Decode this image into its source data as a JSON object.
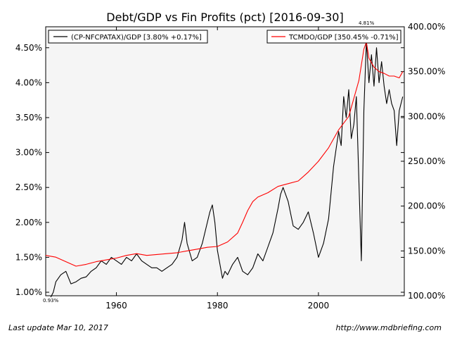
{
  "chart_data": {
    "type": "line",
    "title": "Debt/GDP vs Fin Profits (pct) [2016-09-30]",
    "x_range": [
      1946,
      2017
    ],
    "x_ticks": [
      1960,
      1980,
      2000
    ],
    "y_left": {
      "lim": [
        0.95,
        4.8
      ],
      "ticks": [
        1.0,
        1.5,
        2.0,
        2.5,
        3.0,
        3.5,
        4.0,
        4.5
      ],
      "tick_labels": [
        "1.00%",
        "1.50%",
        "2.00%",
        "2.50%",
        "3.00%",
        "3.50%",
        "4.00%",
        "4.50%"
      ]
    },
    "y_right": {
      "lim": [
        100,
        400
      ],
      "ticks": [
        100,
        150,
        200,
        250,
        300,
        350,
        400
      ],
      "tick_labels": [
        "100.00%",
        "150.00%",
        "200.00%",
        "250.00%",
        "300.00%",
        "350.00%",
        "400.00%"
      ]
    },
    "annotations": {
      "min_label": "0.93%",
      "max_label": "4.81%",
      "min_year": 1947,
      "max_year": 2009.5
    },
    "grid": false,
    "series": [
      {
        "name": "(CP-NFCPATAX)/GDP [3.80% +0.17%]",
        "axis": "left",
        "color": "#000000",
        "legend_position": "top-left",
        "x": [
          1947,
          1947.5,
          1948,
          1949,
          1950,
          1951,
          1952,
          1953,
          1954,
          1955,
          1956,
          1957,
          1958,
          1959,
          1960,
          1961,
          1962,
          1963,
          1964,
          1965,
          1966,
          1967,
          1968,
          1969,
          1970,
          1971,
          1972,
          1973,
          1973.5,
          1974,
          1975,
          1976,
          1977,
          1978,
          1978.5,
          1979,
          1979.5,
          1980,
          1981,
          1981.5,
          1982,
          1983,
          1984,
          1985,
          1986,
          1987,
          1988,
          1989,
          1990,
          1991,
          1992,
          1992.5,
          1993,
          1994,
          1995,
          1996,
          1997,
          1998,
          1999,
          2000,
          2001,
          2002,
          2003,
          2004,
          2004.5,
          2005,
          2005.5,
          2006,
          2006.5,
          2007,
          2007.5,
          2008,
          2008.5,
          2009,
          2009.5,
          2010,
          2010.5,
          2011,
          2011.5,
          2012,
          2012.5,
          2013,
          2013.5,
          2014,
          2014.5,
          2015,
          2015.5,
          2016,
          2016.7
        ],
        "values": [
          0.93,
          1.0,
          1.15,
          1.25,
          1.3,
          1.12,
          1.15,
          1.2,
          1.22,
          1.3,
          1.35,
          1.45,
          1.4,
          1.5,
          1.45,
          1.4,
          1.5,
          1.45,
          1.55,
          1.45,
          1.4,
          1.35,
          1.35,
          1.3,
          1.35,
          1.4,
          1.5,
          1.75,
          2.0,
          1.7,
          1.45,
          1.5,
          1.7,
          2.0,
          2.15,
          2.25,
          2.0,
          1.6,
          1.2,
          1.3,
          1.25,
          1.4,
          1.5,
          1.3,
          1.25,
          1.35,
          1.55,
          1.45,
          1.65,
          1.85,
          2.2,
          2.4,
          2.5,
          2.3,
          1.95,
          1.9,
          2.0,
          2.15,
          1.85,
          1.5,
          1.7,
          2.05,
          2.8,
          3.3,
          3.1,
          3.8,
          3.5,
          3.9,
          3.2,
          3.4,
          3.8,
          2.6,
          1.45,
          3.6,
          4.6,
          4.0,
          4.4,
          3.95,
          4.5,
          4.0,
          4.3,
          3.95,
          3.7,
          3.9,
          3.7,
          3.6,
          3.1,
          3.6,
          3.8
        ]
      },
      {
        "name": "TCMDO/GDP [350.45% -0.71%]",
        "axis": "right",
        "color": "#ff0000",
        "legend_position": "top-right",
        "x": [
          1946,
          1948,
          1950,
          1952,
          1954,
          1956,
          1958,
          1960,
          1962,
          1964,
          1966,
          1968,
          1970,
          1972,
          1974,
          1976,
          1978,
          1980,
          1982,
          1984,
          1985,
          1986,
          1987,
          1988,
          1990,
          1992,
          1994,
          1996,
          1998,
          2000,
          2002,
          2004,
          2006,
          2008,
          2009,
          2009.5,
          2010,
          2011,
          2012,
          2013,
          2014,
          2015,
          2016,
          2016.7
        ],
        "values": [
          145,
          143,
          138,
          133,
          135,
          138,
          140,
          142,
          145,
          147,
          145,
          146,
          147,
          148,
          150,
          152,
          154,
          155,
          160,
          170,
          182,
          195,
          205,
          210,
          215,
          222,
          225,
          228,
          238,
          250,
          265,
          285,
          300,
          340,
          375,
          383,
          365,
          355,
          350,
          348,
          345,
          345,
          343,
          350
        ]
      }
    ]
  },
  "footer": {
    "left": "Last update Mar 10, 2017",
    "right": "http://www.mdbriefing.com"
  },
  "colors": {
    "plot_bg": "#f5f5f5",
    "left_series": "#000000",
    "right_series": "#ff0000"
  }
}
